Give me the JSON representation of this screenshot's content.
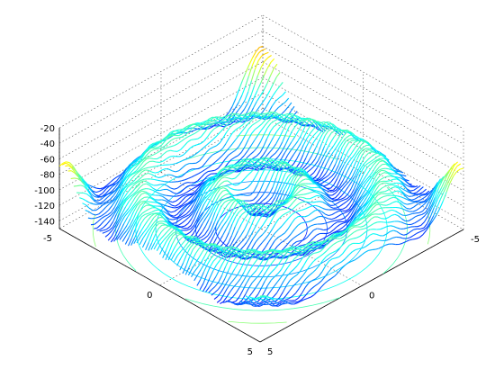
{
  "chart_data": {
    "type": "surface",
    "title": "",
    "xlabel": "",
    "ylabel": "",
    "zlabel": "",
    "xlim": [
      -5,
      5
    ],
    "ylim": [
      -5,
      5
    ],
    "zlim": [
      -150,
      -20
    ],
    "x_ticks": [
      {
        "label": "-5",
        "value": -5
      },
      {
        "label": "0",
        "value": 0
      },
      {
        "label": "5",
        "value": 5
      }
    ],
    "y_ticks": [
      {
        "label": "-5",
        "value": -5
      },
      {
        "label": "0",
        "value": 0
      },
      {
        "label": "5",
        "value": 5
      }
    ],
    "z_ticks": [
      {
        "label": "-20",
        "value": -20
      },
      {
        "label": "-40",
        "value": -40
      },
      {
        "label": "-60",
        "value": -60
      },
      {
        "label": "-80",
        "value": -80
      },
      {
        "label": "-100",
        "value": -100
      },
      {
        "label": "-120",
        "value": -120
      },
      {
        "label": "-140",
        "value": -140
      }
    ],
    "grid": true,
    "colormap": "jet",
    "mesh_style": "lines-along-y",
    "contour_on_floor": true,
    "surface_description": "concentric ripple pattern with peaks at the back corner and left/right corners"
  }
}
